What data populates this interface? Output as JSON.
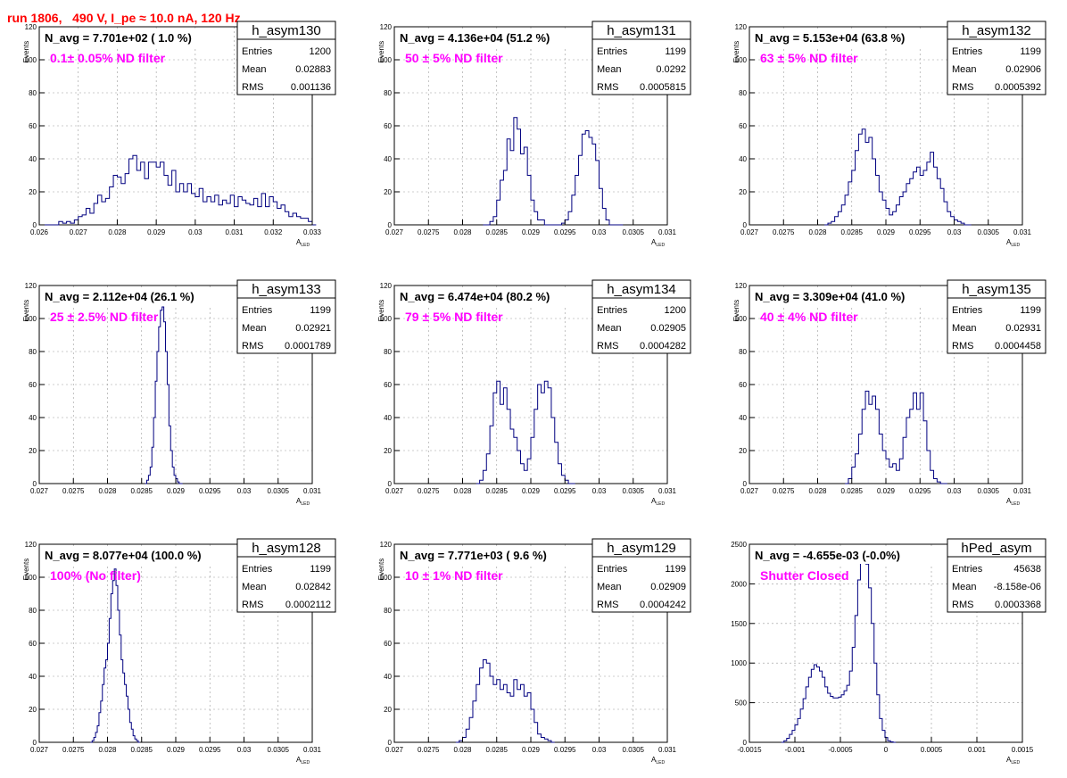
{
  "header": {
    "title": "run 1806,   490 V, I_pe ≈ 10.0 nA, 120 Hz"
  },
  "colors": {
    "histogram": "#000080",
    "magenta_text": "#ff00ff",
    "title_red": "#ff0000",
    "grid": "#999999"
  },
  "stat_labels": {
    "entries": "Entries",
    "mean": "Mean",
    "rms": "RMS"
  },
  "chart_data": [
    {
      "type": "bar",
      "name": "h_asym130",
      "stats": {
        "entries": "1200",
        "mean": "0.02883",
        "rms": "0.001136"
      },
      "navg": "N_avg = 7.701e+02 ( 1.0 %)",
      "note": "0.1± 0.05% ND filter",
      "xlabel": "A_LED",
      "ylabel": "Events",
      "xlim": [
        0.026,
        0.033
      ],
      "ylim": [
        0,
        120
      ],
      "xticks": [
        0.026,
        0.027,
        0.028,
        0.029,
        0.03,
        0.031,
        0.032,
        0.033
      ],
      "xtick_labels": [
        "0.026",
        "0.027",
        "0.028",
        "0.029",
        "0.03",
        "0.031",
        "0.032",
        "0.033"
      ],
      "yticks": [
        0,
        20,
        40,
        60,
        80,
        100,
        120
      ],
      "ytick_labels": [
        "0",
        "20",
        "40",
        "60",
        "80",
        "100",
        "120"
      ],
      "bins": {
        "start": 0.026,
        "width": 0.0001,
        "counts": [
          0,
          0,
          0,
          0,
          0,
          2,
          1,
          2,
          1,
          3,
          5,
          6,
          10,
          7,
          13,
          18,
          14,
          16,
          23,
          30,
          29,
          25,
          31,
          40,
          42,
          33,
          38,
          28,
          38,
          38,
          35,
          38,
          30,
          24,
          33,
          20,
          25,
          20,
          25,
          19,
          17,
          22,
          14,
          17,
          14,
          18,
          12,
          15,
          13,
          18,
          11,
          17,
          15,
          13,
          12,
          16,
          11,
          19,
          11,
          17,
          14,
          10,
          12,
          8,
          5,
          7,
          5,
          4,
          4,
          2,
          0
        ]
      }
    },
    {
      "type": "bar",
      "name": "h_asym131",
      "stats": {
        "entries": "1199",
        "mean": "0.0292",
        "rms": "0.0005815"
      },
      "navg": "N_avg = 4.136e+04 (51.2 %)",
      "note": "50 ± 5% ND filter",
      "xlabel": "A_LED",
      "ylabel": "Events",
      "xlim": [
        0.027,
        0.031
      ],
      "ylim": [
        0,
        120
      ],
      "xticks": [
        0.027,
        0.0275,
        0.028,
        0.0285,
        0.029,
        0.0295,
        0.03,
        0.0305,
        0.031
      ],
      "xtick_labels": [
        "0.027",
        "0.0275",
        "0.028",
        "0.0285",
        "0.029",
        "0.0295",
        "0.03",
        "0.0305",
        "0.031"
      ],
      "yticks": [
        0,
        20,
        40,
        60,
        80,
        100,
        120
      ],
      "ytick_labels": [
        "0",
        "20",
        "40",
        "60",
        "80",
        "100",
        "120"
      ],
      "bins": {
        "start": 0.0283,
        "width": 5e-05,
        "counts": [
          0,
          0,
          2,
          5,
          15,
          27,
          33,
          52,
          45,
          65,
          58,
          43,
          47,
          30,
          15,
          8,
          3,
          3,
          0,
          0,
          0,
          0,
          0,
          1,
          3,
          8,
          18,
          30,
          42,
          55,
          57,
          53,
          49,
          39,
          22,
          10,
          3,
          0,
          0,
          0,
          0
        ]
      }
    },
    {
      "type": "bar",
      "name": "h_asym132",
      "stats": {
        "entries": "1199",
        "mean": "0.02906",
        "rms": "0.0005392"
      },
      "navg": "N_avg = 5.153e+04 (63.8 %)",
      "note": "63 ± 5% ND filter",
      "xlabel": "A_LED",
      "ylabel": "Events",
      "xlim": [
        0.027,
        0.031
      ],
      "ylim": [
        0,
        120
      ],
      "xticks": [
        0.027,
        0.0275,
        0.028,
        0.0285,
        0.029,
        0.0295,
        0.03,
        0.0305,
        0.031
      ],
      "xtick_labels": [
        "0.027",
        "0.0275",
        "0.028",
        "0.0285",
        "0.029",
        "0.0295",
        "0.03",
        "0.0305",
        "0.031"
      ],
      "yticks": [
        0,
        20,
        40,
        60,
        80,
        100,
        120
      ],
      "ytick_labels": [
        "0",
        "20",
        "40",
        "60",
        "80",
        "100",
        "120"
      ],
      "bins": {
        "start": 0.0281,
        "width": 5e-05,
        "counts": [
          0,
          1,
          2,
          5,
          8,
          12,
          18,
          26,
          33,
          45,
          55,
          58,
          50,
          53,
          40,
          30,
          20,
          15,
          10,
          6,
          8,
          12,
          17,
          20,
          25,
          28,
          32,
          35,
          30,
          33,
          38,
          44,
          35,
          28,
          22,
          14,
          8,
          5,
          3,
          2,
          1,
          0,
          0
        ]
      }
    },
    {
      "type": "bar",
      "name": "h_asym133",
      "stats": {
        "entries": "1199",
        "mean": "0.02921",
        "rms": "0.0001789"
      },
      "navg": "N_avg = 2.112e+04 (26.1 %)",
      "note": "25 ± 2.5% ND filter",
      "xlabel": "A_LED",
      "ylabel": "Events",
      "xlim": [
        0.027,
        0.031
      ],
      "ylim": [
        0,
        120
      ],
      "xticks": [
        0.027,
        0.0275,
        0.028,
        0.0285,
        0.029,
        0.0295,
        0.03,
        0.0305,
        0.031
      ],
      "xtick_labels": [
        "0.027",
        "0.0275",
        "0.028",
        "0.0285",
        "0.029",
        "0.0295",
        "0.03",
        "0.0305",
        "0.031"
      ],
      "yticks": [
        0,
        20,
        40,
        60,
        80,
        100,
        120
      ],
      "ytick_labels": [
        "0",
        "20",
        "40",
        "60",
        "80",
        "100",
        "120"
      ],
      "bins": {
        "start": 0.02855,
        "width": 2.5e-05,
        "counts": [
          0,
          2,
          5,
          10,
          22,
          40,
          62,
          80,
          95,
          105,
          107,
          98,
          80,
          60,
          35,
          20,
          10,
          5,
          3,
          1,
          0,
          0
        ]
      }
    },
    {
      "type": "bar",
      "name": "h_asym134",
      "stats": {
        "entries": "1200",
        "mean": "0.02905",
        "rms": "0.0004282"
      },
      "navg": "N_avg = 6.474e+04 (80.2 %)",
      "note": "79 ± 5% ND filter",
      "xlabel": "A_LED",
      "ylabel": "Events",
      "xlim": [
        0.027,
        0.031
      ],
      "ylim": [
        0,
        120
      ],
      "xticks": [
        0.027,
        0.0275,
        0.028,
        0.0285,
        0.029,
        0.0295,
        0.03,
        0.0305,
        0.031
      ],
      "xtick_labels": [
        "0.027",
        "0.0275",
        "0.028",
        "0.0285",
        "0.029",
        "0.0295",
        "0.03",
        "0.0305",
        "0.031"
      ],
      "yticks": [
        0,
        20,
        40,
        60,
        80,
        100,
        120
      ],
      "ytick_labels": [
        "0",
        "20",
        "40",
        "60",
        "80",
        "100",
        "120"
      ],
      "bins": {
        "start": 0.0282,
        "width": 5e-05,
        "counts": [
          0,
          2,
          8,
          18,
          35,
          55,
          62,
          48,
          58,
          45,
          33,
          28,
          20,
          12,
          8,
          15,
          28,
          45,
          60,
          55,
          62,
          58,
          40,
          25,
          12,
          5,
          2,
          0,
          0
        ]
      }
    },
    {
      "type": "bar",
      "name": "h_asym135",
      "stats": {
        "entries": "1199",
        "mean": "0.02931",
        "rms": "0.0004458"
      },
      "navg": "N_avg = 3.309e+04 (41.0 %)",
      "note": "40 ± 4% ND filter",
      "xlabel": "A_LED",
      "ylabel": "Events",
      "xlim": [
        0.027,
        0.031
      ],
      "ylim": [
        0,
        120
      ],
      "xticks": [
        0.027,
        0.0275,
        0.028,
        0.0285,
        0.029,
        0.0295,
        0.03,
        0.0305,
        0.031
      ],
      "xtick_labels": [
        "0.027",
        "0.0275",
        "0.028",
        "0.0285",
        "0.029",
        "0.0295",
        "0.03",
        "0.0305",
        "0.031"
      ],
      "yticks": [
        0,
        20,
        40,
        60,
        80,
        100,
        120
      ],
      "ytick_labels": [
        "0",
        "20",
        "40",
        "60",
        "80",
        "100",
        "120"
      ],
      "bins": {
        "start": 0.0284,
        "width": 5e-05,
        "counts": [
          0,
          3,
          10,
          18,
          30,
          45,
          56,
          48,
          53,
          45,
          30,
          20,
          15,
          10,
          12,
          8,
          15,
          28,
          40,
          45,
          55,
          45,
          55,
          38,
          20,
          8,
          3,
          1,
          0,
          0
        ]
      }
    },
    {
      "type": "bar",
      "name": "h_asym128",
      "stats": {
        "entries": "1199",
        "mean": "0.02842",
        "rms": "0.0002112"
      },
      "navg": "N_avg = 8.077e+04 (100.0 %)",
      "note": "100% (No filter)",
      "xlabel": "A_LED",
      "ylabel": "Events",
      "xlim": [
        0.027,
        0.031
      ],
      "ylim": [
        0,
        120
      ],
      "xticks": [
        0.027,
        0.0275,
        0.028,
        0.0285,
        0.029,
        0.0295,
        0.03,
        0.0305,
        0.031
      ],
      "xtick_labels": [
        "0.027",
        "0.0275",
        "0.028",
        "0.0285",
        "0.029",
        "0.0295",
        "0.03",
        "0.0305",
        "0.031"
      ],
      "yticks": [
        0,
        20,
        40,
        60,
        80,
        100,
        120
      ],
      "ytick_labels": [
        "0",
        "20",
        "40",
        "60",
        "80",
        "100",
        "120"
      ],
      "bins": {
        "start": 0.02775,
        "width": 2.5e-05,
        "counts": [
          0,
          1,
          3,
          6,
          10,
          18,
          25,
          35,
          45,
          50,
          60,
          75,
          90,
          98,
          105,
          95,
          80,
          65,
          50,
          42,
          35,
          28,
          20,
          12,
          8,
          4,
          2,
          1,
          0
        ]
      }
    },
    {
      "type": "bar",
      "name": "h_asym129",
      "stats": {
        "entries": "1199",
        "mean": "0.02909",
        "rms": "0.0004242"
      },
      "navg": "N_avg = 7.771e+03 ( 9.6 %)",
      "note": "10 ± 1% ND filter",
      "xlabel": "A_LED",
      "ylabel": "Events",
      "xlim": [
        0.027,
        0.031
      ],
      "ylim": [
        0,
        120
      ],
      "xticks": [
        0.027,
        0.0275,
        0.028,
        0.0285,
        0.029,
        0.0295,
        0.03,
        0.0305,
        0.031
      ],
      "xtick_labels": [
        "0.027",
        "0.0275",
        "0.028",
        "0.0285",
        "0.029",
        "0.0295",
        "0.03",
        "0.0305",
        "0.031"
      ],
      "yticks": [
        0,
        20,
        40,
        60,
        80,
        100,
        120
      ],
      "ytick_labels": [
        "0",
        "20",
        "40",
        "60",
        "80",
        "100",
        "120"
      ],
      "bins": {
        "start": 0.0279,
        "width": 5e-05,
        "counts": [
          0,
          1,
          3,
          8,
          15,
          25,
          35,
          45,
          50,
          48,
          40,
          35,
          38,
          32,
          35,
          30,
          28,
          38,
          32,
          35,
          28,
          30,
          20,
          12,
          5,
          3,
          2,
          1,
          0
        ]
      }
    },
    {
      "type": "bar",
      "name": "hPed_asym",
      "stats": {
        "entries": "45638",
        "mean": "-8.158e-06",
        "rms": "0.0003368"
      },
      "navg": "N_avg = -4.655e-03 (-0.0%)",
      "note": "Shutter Closed",
      "xlabel": "A_LED",
      "ylabel": "",
      "xlim": [
        -0.0015,
        0.0015
      ],
      "ylim": [
        0,
        2500
      ],
      "xticks": [
        -0.0015,
        -0.001,
        -0.0005,
        0,
        0.0005,
        0.001,
        0.0015
      ],
      "xtick_labels": [
        "-0.0015",
        "-0.001",
        "-0.0005",
        "0",
        "0.0005",
        "0.001",
        "0.0015"
      ],
      "yticks": [
        0,
        500,
        1000,
        1500,
        2000,
        2500
      ],
      "ytick_labels": [
        "0",
        "500",
        "1000",
        "1500",
        "2000",
        "2500"
      ],
      "bins": {
        "start": -0.00115,
        "width": 3e-05,
        "counts": [
          0,
          20,
          50,
          100,
          150,
          220,
          300,
          420,
          550,
          700,
          820,
          920,
          980,
          950,
          900,
          820,
          700,
          620,
          580,
          560,
          560,
          570,
          600,
          650,
          720,
          900,
          1200,
          1600,
          2050,
          2300,
          2350,
          2250,
          1950,
          1500,
          1000,
          600,
          300,
          150,
          60,
          20,
          5,
          0
        ]
      }
    }
  ]
}
